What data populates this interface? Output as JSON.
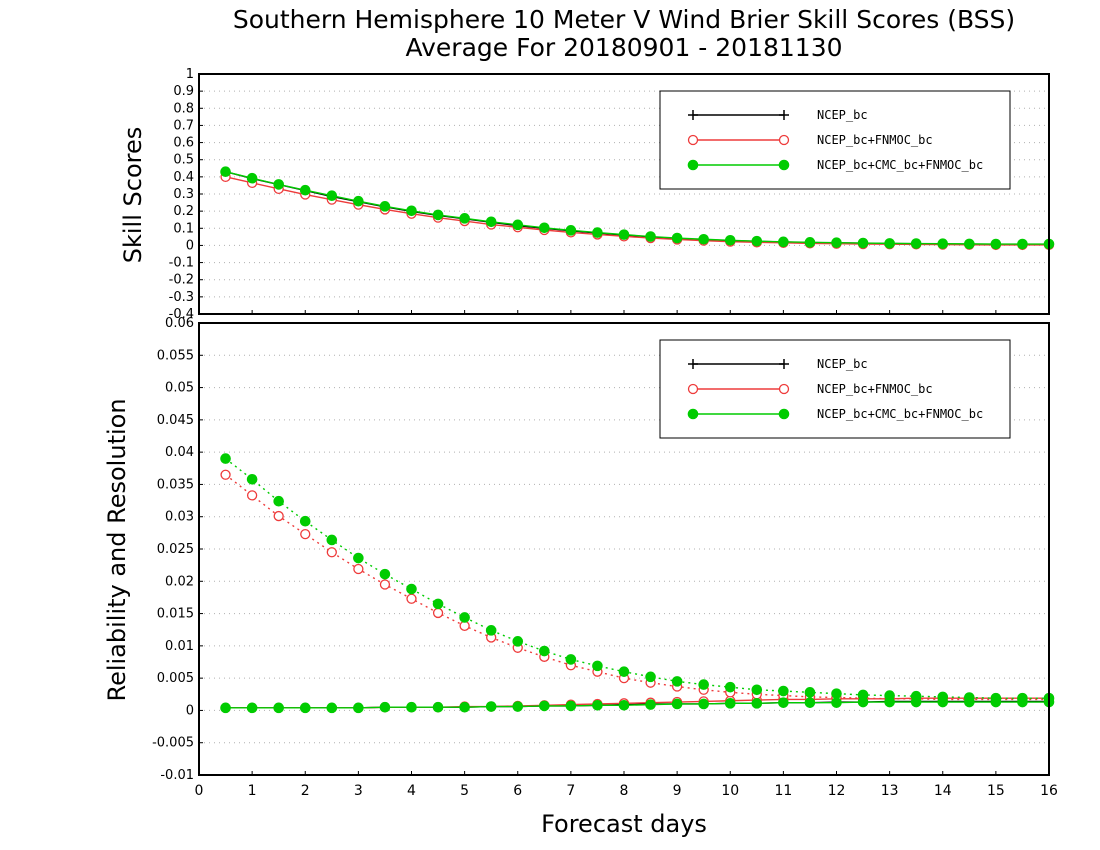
{
  "figure": {
    "title_line1": "Southern Hemisphere 10 Meter V Wind Brier Skill Scores (BSS)",
    "title_line2": "Average For 20180901 - 20181130",
    "xlabel": "Forecast days"
  },
  "colors": {
    "NCEP_bc": "#000000",
    "NCEP_bc+FNMOC_bc": "#ee3b3b",
    "NCEP_bc+CMC_bc+FNMOC_bc": "#00cc00"
  },
  "chart_data": [
    {
      "type": "line",
      "ylabel": "Skill Scores",
      "xlim": [
        0,
        16
      ],
      "ylim": [
        -0.4,
        1
      ],
      "x_ticks": [
        "0",
        "1",
        "2",
        "3",
        "4",
        "5",
        "6",
        "7",
        "8",
        "9",
        "10",
        "11",
        "12",
        "13",
        "14",
        "15",
        "16"
      ],
      "y_ticks": [
        "1",
        "0.9",
        "0.8",
        "0.7",
        "0.6",
        "0.5",
        "0.4",
        "0.3",
        "0.2",
        "0.1",
        "0",
        "-0.1",
        "-0.2",
        "-0.3",
        "-0.4"
      ],
      "grid": true,
      "legend_position": "top-right",
      "x": [
        0.5,
        1,
        1.5,
        2,
        2.5,
        3,
        3.5,
        4,
        4.5,
        5,
        5.5,
        6,
        6.5,
        7,
        7.5,
        8,
        8.5,
        9,
        9.5,
        10,
        10.5,
        11,
        11.5,
        12,
        12.5,
        13,
        13.5,
        14,
        14.5,
        15,
        15.5,
        16
      ],
      "series": [
        {
          "name": "NCEP_bc",
          "marker": "plus",
          "style": "solid",
          "values": [
            0.43,
            0.39,
            0.355,
            0.32,
            0.285,
            0.255,
            0.225,
            0.198,
            0.175,
            0.155,
            0.135,
            0.115,
            0.1,
            0.085,
            0.072,
            0.06,
            0.05,
            0.04,
            0.034,
            0.028,
            0.024,
            0.02,
            0.017,
            0.015,
            0.013,
            0.011,
            0.01,
            0.008,
            0.007,
            0.006,
            0.005,
            0.005
          ]
        },
        {
          "name": "NCEP_bc+FNMOC_bc",
          "marker": "open-circle",
          "style": "solid",
          "values": [
            0.4,
            0.365,
            0.33,
            0.297,
            0.267,
            0.238,
            0.21,
            0.185,
            0.162,
            0.142,
            0.122,
            0.106,
            0.09,
            0.076,
            0.064,
            0.053,
            0.043,
            0.035,
            0.028,
            0.022,
            0.018,
            0.015,
            0.012,
            0.01,
            0.008,
            0.007,
            0.006,
            0.005,
            0.004,
            0.003,
            0.003,
            0.003
          ]
        },
        {
          "name": "NCEP_bc+CMC_bc+FNMOC_bc",
          "marker": "filled-circle",
          "style": "solid",
          "values": [
            0.43,
            0.392,
            0.356,
            0.322,
            0.29,
            0.258,
            0.228,
            0.202,
            0.178,
            0.158,
            0.138,
            0.12,
            0.103,
            0.088,
            0.075,
            0.063,
            0.052,
            0.043,
            0.036,
            0.03,
            0.025,
            0.021,
            0.018,
            0.016,
            0.014,
            0.012,
            0.011,
            0.01,
            0.009,
            0.008,
            0.008,
            0.008
          ]
        }
      ]
    },
    {
      "type": "line",
      "ylabel": "Reliability and Resolution",
      "xlim": [
        0,
        16
      ],
      "ylim": [
        -0.01,
        0.06
      ],
      "x_ticks": [
        "0",
        "1",
        "2",
        "3",
        "4",
        "5",
        "6",
        "7",
        "8",
        "9",
        "10",
        "11",
        "12",
        "13",
        "14",
        "15",
        "16"
      ],
      "y_ticks": [
        "0.06",
        "0.055",
        "0.05",
        "0.045",
        "0.04",
        "0.035",
        "0.03",
        "0.025",
        "0.02",
        "0.015",
        "0.01",
        "0.005",
        "0",
        "-0.005",
        "-0.01"
      ],
      "grid": true,
      "legend_position": "top-right",
      "x": [
        0.5,
        1,
        1.5,
        2,
        2.5,
        3,
        3.5,
        4,
        4.5,
        5,
        5.5,
        6,
        6.5,
        7,
        7.5,
        8,
        8.5,
        9,
        9.5,
        10,
        10.5,
        11,
        11.5,
        12,
        12.5,
        13,
        13.5,
        14,
        14.5,
        15,
        15.5,
        16
      ],
      "series": [
        {
          "name": "NCEP_bc",
          "marker": "plus",
          "style": "solid",
          "values": [
            0.0004,
            0.0004,
            0.0004,
            0.0004,
            0.0004,
            0.0004,
            0.0005,
            0.0005,
            0.0005,
            0.0005,
            0.0006,
            0.0006,
            0.0007,
            0.0007,
            0.0008,
            0.0009,
            0.001,
            0.001,
            0.001,
            0.0011,
            0.0011,
            0.0012,
            0.0012,
            0.0013,
            0.0013,
            0.0014,
            0.0014,
            0.0014,
            0.0014,
            0.0014,
            0.0014,
            0.0014
          ]
        },
        {
          "name": "NCEP_bc+FNMOC_bc",
          "marker": "open-circle",
          "style": "solid",
          "role": "reliability",
          "values": [
            0.0004,
            0.0004,
            0.0004,
            0.0004,
            0.0004,
            0.0004,
            0.0005,
            0.0005,
            0.0005,
            0.0006,
            0.0006,
            0.0007,
            0.0008,
            0.0009,
            0.001,
            0.0011,
            0.0012,
            0.0013,
            0.0014,
            0.0015,
            0.0016,
            0.0017,
            0.0017,
            0.0018,
            0.0018,
            0.0018,
            0.0019,
            0.0019,
            0.0019,
            0.0019,
            0.0019,
            0.0019
          ]
        },
        {
          "name": "NCEP_bc+FNMOC_bc",
          "marker": "open-circle",
          "style": "dotted",
          "role": "resolution",
          "values": [
            0.0365,
            0.0333,
            0.0301,
            0.0273,
            0.0245,
            0.0219,
            0.0195,
            0.0173,
            0.0151,
            0.0131,
            0.0113,
            0.0097,
            0.0083,
            0.007,
            0.006,
            0.005,
            0.0043,
            0.0037,
            0.0032,
            0.0028,
            0.0025,
            0.0023,
            0.0021,
            0.002,
            0.0019,
            0.0018,
            0.0018,
            0.0017,
            0.0017,
            0.0017,
            0.0017,
            0.0017
          ]
        },
        {
          "name": "NCEP_bc+CMC_bc+FNMOC_bc",
          "marker": "filled-circle",
          "style": "solid",
          "role": "reliability",
          "values": [
            0.0004,
            0.0004,
            0.0004,
            0.0004,
            0.0004,
            0.0004,
            0.0005,
            0.0005,
            0.0005,
            0.0005,
            0.0006,
            0.0006,
            0.0007,
            0.0007,
            0.0008,
            0.0008,
            0.0009,
            0.001,
            0.001,
            0.0011,
            0.0011,
            0.0012,
            0.0012,
            0.0012,
            0.0013,
            0.0013,
            0.0013,
            0.0013,
            0.0013,
            0.0013,
            0.0013,
            0.0013
          ]
        },
        {
          "name": "NCEP_bc+CMC_bc+FNMOC_bc",
          "marker": "filled-circle",
          "style": "dotted",
          "role": "resolution",
          "values": [
            0.039,
            0.0358,
            0.0324,
            0.0293,
            0.0264,
            0.0236,
            0.0211,
            0.0188,
            0.0165,
            0.0144,
            0.0124,
            0.0107,
            0.0092,
            0.0079,
            0.0069,
            0.006,
            0.0052,
            0.0045,
            0.004,
            0.0036,
            0.0032,
            0.003,
            0.0028,
            0.0026,
            0.0024,
            0.0023,
            0.0022,
            0.0021,
            0.002,
            0.0019,
            0.0019,
            0.0019
          ]
        }
      ]
    }
  ]
}
